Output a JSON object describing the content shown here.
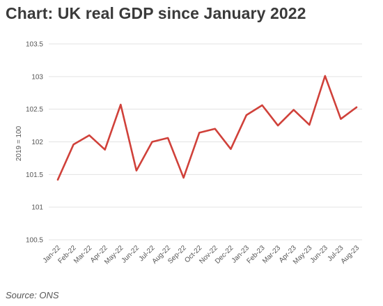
{
  "title": "Chart: UK real GDP since January 2022",
  "source": "Source: ONS",
  "colors": {
    "line": "#d0413a",
    "grid": "#e3e3e3"
  },
  "chart_data": {
    "type": "line",
    "title": "Chart: UK real GDP since January 2022",
    "xlabel": "",
    "ylabel": "2019 = 100",
    "ylim": [
      100.5,
      103.5
    ],
    "yticks": [
      "100.5",
      "101",
      "101.5",
      "102",
      "102.5",
      "103",
      "103.5"
    ],
    "grid": true,
    "categories": [
      "Jan-22",
      "Feb-22",
      "Mar-22",
      "Apr-22",
      "May-22",
      "Jun-22",
      "Jul-22",
      "Aug-22",
      "Sep-22",
      "Oct-22",
      "Nov-22",
      "Dec-22",
      "Jan-23",
      "Feb-23",
      "Mar-23",
      "Apr-23",
      "May-23",
      "Jun-23",
      "Jul-23",
      "Aug-23"
    ],
    "series": [
      {
        "values": [
          101.42,
          101.96,
          102.1,
          101.88,
          102.57,
          101.56,
          102.0,
          102.06,
          101.45,
          102.14,
          102.2,
          101.89,
          102.41,
          102.56,
          102.25,
          102.49,
          102.26,
          103.01,
          102.35,
          102.53
        ]
      }
    ]
  }
}
